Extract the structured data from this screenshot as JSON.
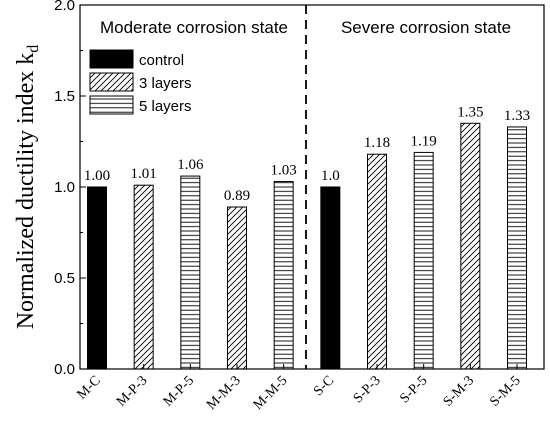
{
  "chart_data": {
    "type": "bar",
    "ylabel": "Normalized ductility index k",
    "ylabel_subscript": "d",
    "ylim": [
      0.0,
      2.0
    ],
    "yticks": [
      "0.0",
      "0.5",
      "1.0",
      "1.5",
      "2.0"
    ],
    "grid": false,
    "legend_position": "top-left",
    "groups": [
      {
        "label": "Moderate corrosion state"
      },
      {
        "label": "Severe corrosion state"
      }
    ],
    "legend": [
      {
        "label": "control",
        "pattern": "solid"
      },
      {
        "label": "3 layers",
        "pattern": "diagonal"
      },
      {
        "label": "5 layers",
        "pattern": "horizontal"
      }
    ],
    "categories": [
      "M-C",
      "M-P-3",
      "M-P-5",
      "M-M-3",
      "M-M-5",
      "S-C",
      "S-P-3",
      "S-P-5",
      "S-M-3",
      "S-M-5"
    ],
    "values": [
      1.0,
      1.01,
      1.06,
      0.89,
      1.03,
      1.0,
      1.18,
      1.19,
      1.35,
      1.33
    ],
    "value_labels": [
      "1.00",
      "1.01",
      "1.06",
      "0.89",
      "1.03",
      "1.0",
      "1.18",
      "1.19",
      "1.35",
      "1.33"
    ],
    "patterns": [
      "solid",
      "diagonal",
      "horizontal",
      "diagonal",
      "horizontal",
      "solid",
      "diagonal",
      "horizontal",
      "diagonal",
      "horizontal"
    ],
    "group_split_after_index": 4,
    "colors": {
      "bar_edge": "#000000",
      "solid": "#000000",
      "background": "#ffffff"
    }
  }
}
